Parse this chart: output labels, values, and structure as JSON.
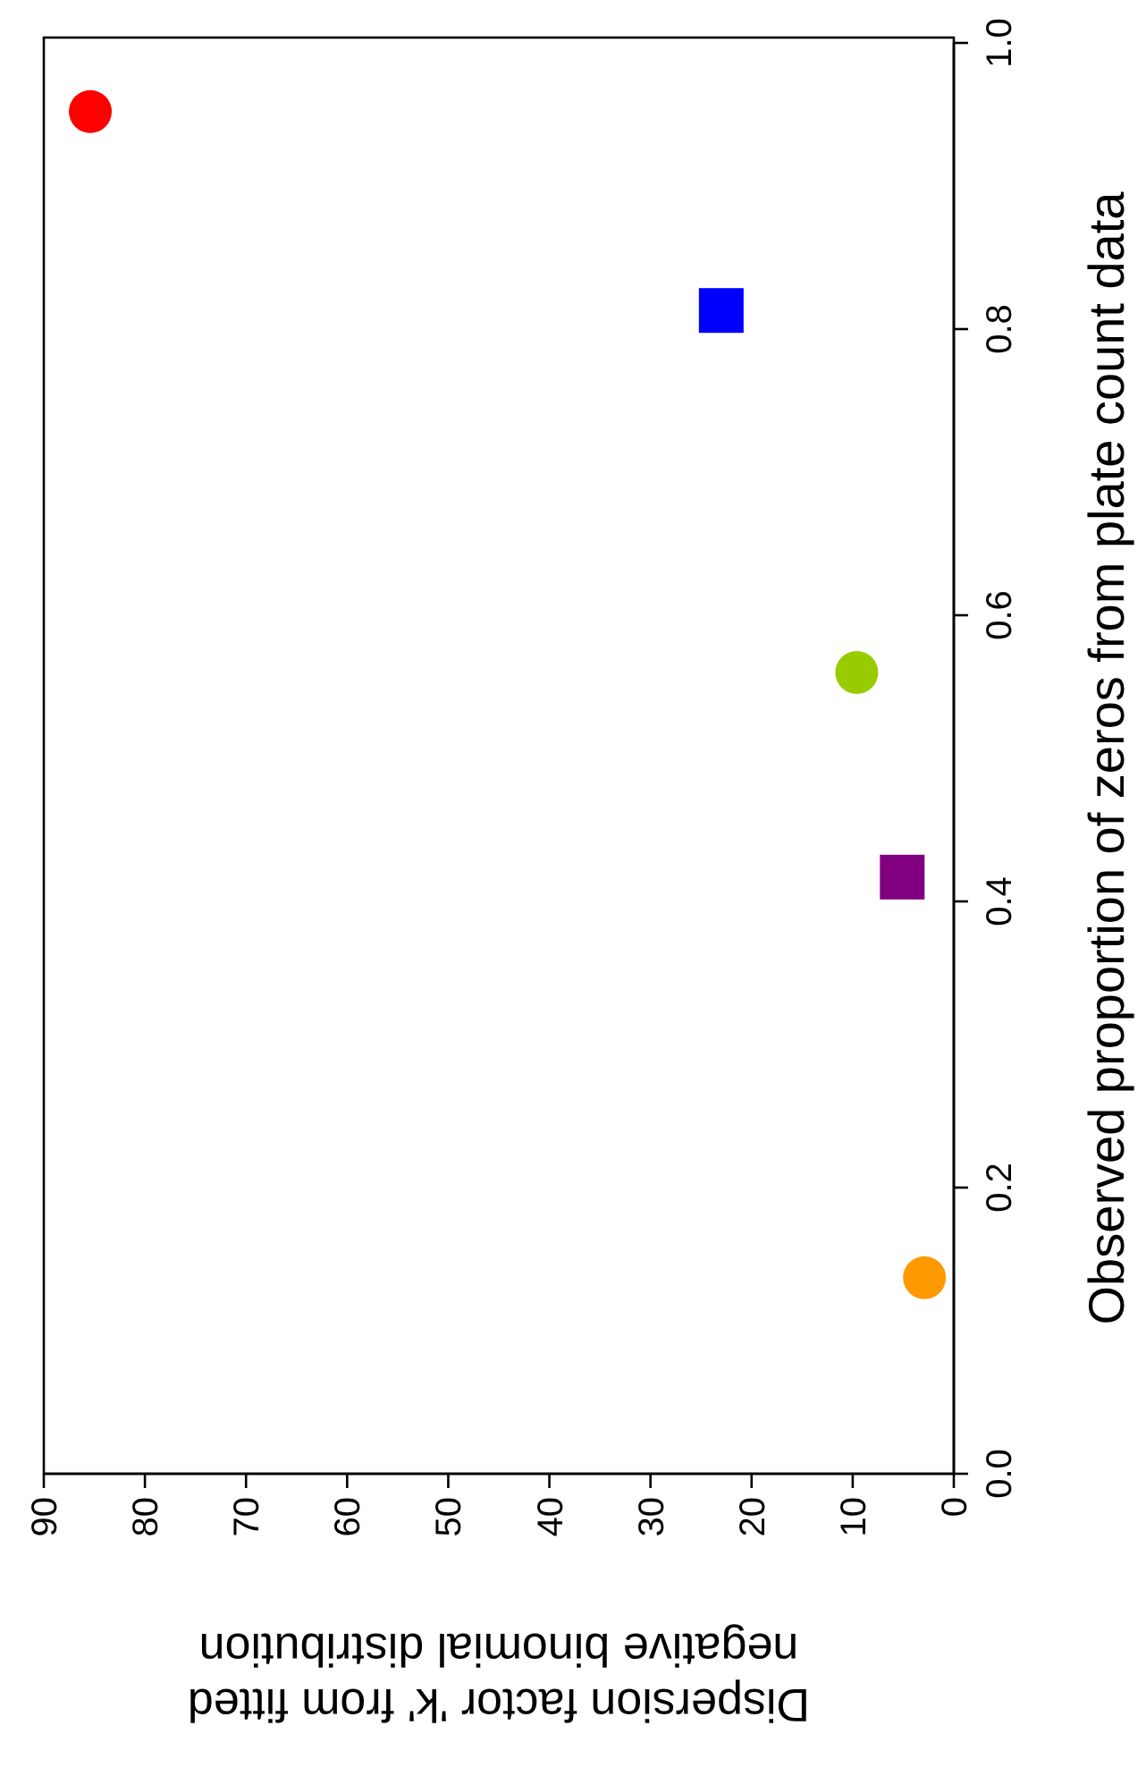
{
  "chart_data": {
    "type": "scatter",
    "xlabel": "Dispersion factor 'k' from fitted\nnegative binomial distribution",
    "ylabel": "Observed proportion of zeros from plate count data",
    "xlim": [
      90,
      0
    ],
    "xticks": [
      90,
      80,
      70,
      60,
      50,
      40,
      30,
      20,
      10,
      0
    ],
    "ylim": [
      0,
      1
    ],
    "yticks": [
      {
        "value": 0,
        "label": "0.0"
      },
      0.2,
      0.4,
      0.6,
      0.8,
      {
        "value": 1,
        "label": "1.0"
      }
    ],
    "series": [
      {
        "x": [
          85.4
        ],
        "values": [
          0.952
        ],
        "color": "#ff0000",
        "marker": "circle"
      },
      {
        "x": [
          23.0
        ],
        "values": [
          0.813
        ],
        "color": "#0000ff",
        "marker": "square"
      },
      {
        "x": [
          9.6
        ],
        "values": [
          0.56
        ],
        "color": "#99cc00",
        "marker": "circle"
      },
      {
        "x": [
          5.1
        ],
        "values": [
          0.417
        ],
        "color": "#800080",
        "marker": "square"
      },
      {
        "x": [
          2.9
        ],
        "values": [
          0.137
        ],
        "color": "#ff9900",
        "marker": "circle"
      }
    ]
  }
}
